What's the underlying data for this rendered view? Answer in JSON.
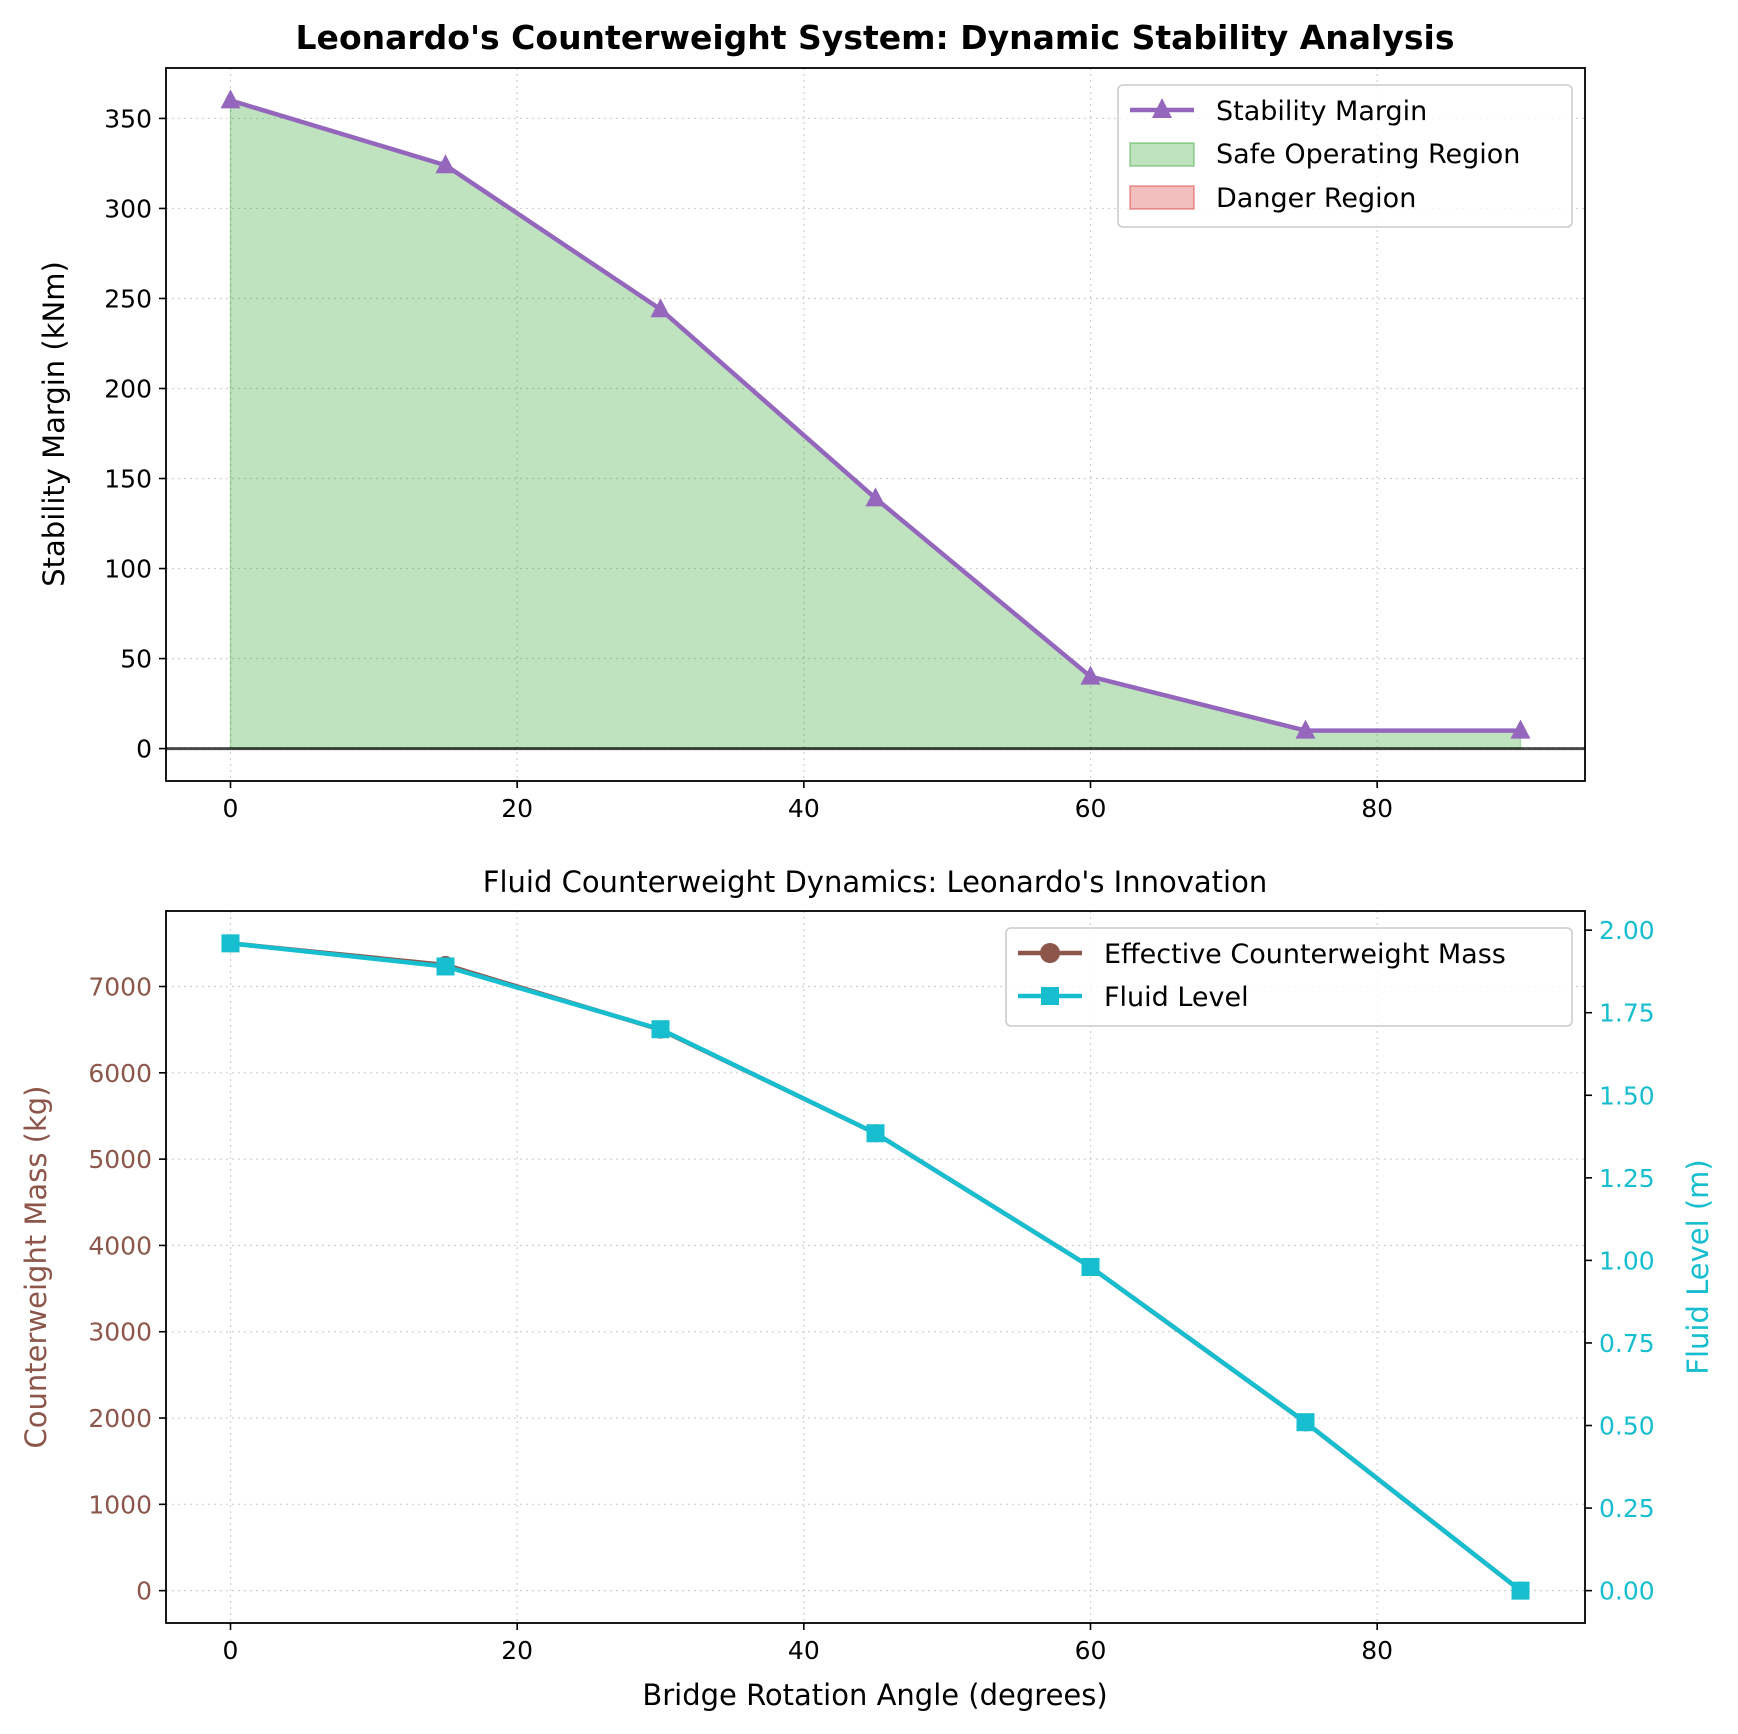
{
  "chart_data": [
    {
      "type": "line",
      "title": "Leonardo's Counterweight System: Dynamic Stability Analysis",
      "xlabel": "",
      "ylabel": "Stability Margin (kNm)",
      "x": [
        0,
        15,
        30,
        45,
        60,
        75,
        90
      ],
      "xlim": [
        -4.5,
        94.5
      ],
      "ylim": [
        -18,
        378
      ],
      "xticks": [
        0,
        20,
        40,
        60,
        80
      ],
      "yticks": [
        0,
        50,
        100,
        150,
        200,
        250,
        300,
        350
      ],
      "grid": true,
      "legend_position": "top-right",
      "reference_line": 0,
      "series": [
        {
          "name": "Stability Margin",
          "values": [
            360,
            324,
            244,
            139,
            40,
            10,
            10
          ],
          "color": "#9467bd",
          "marker": "triangle"
        }
      ],
      "regions": [
        {
          "name": "Safe Operating Region",
          "color": "#2ca02c"
        },
        {
          "name": "Danger Region",
          "color": "#d62728"
        }
      ]
    },
    {
      "type": "line",
      "title": "Fluid Counterweight Dynamics: Leonardo's Innovation",
      "xlabel": "Bridge Rotation Angle (degrees)",
      "ylabel": "Counterweight Mass (kg)",
      "ylabel_right": "Fluid Level (m)",
      "x": [
        0,
        15,
        30,
        45,
        60,
        75,
        90
      ],
      "xlim": [
        -4.5,
        94.5
      ],
      "ylim": [
        -375,
        7875
      ],
      "ylim_right": [
        -0.098,
        2.058
      ],
      "xticks": [
        0,
        20,
        40,
        60,
        80
      ],
      "yticks": [
        0,
        1000,
        2000,
        3000,
        4000,
        5000,
        6000,
        7000
      ],
      "yticks_right": [
        "0.00",
        "0.25",
        "0.50",
        "0.75",
        "1.00",
        "1.25",
        "1.50",
        "1.75",
        "2.00"
      ],
      "grid": true,
      "legend_position": "top-right",
      "left_color": "#8c564b",
      "right_color": "#17becf",
      "series": [
        {
          "name": "Effective Counterweight Mass",
          "axis": "left",
          "values": [
            7500,
            7250,
            6500,
            5300,
            3750,
            1950,
            0
          ],
          "color": "#8c564b",
          "marker": "circle"
        },
        {
          "name": "Fluid Level",
          "axis": "right",
          "values": [
            1.96,
            1.89,
            1.7,
            1.385,
            0.98,
            0.51,
            0.0
          ],
          "color": "#17becf",
          "marker": "square"
        }
      ]
    }
  ]
}
